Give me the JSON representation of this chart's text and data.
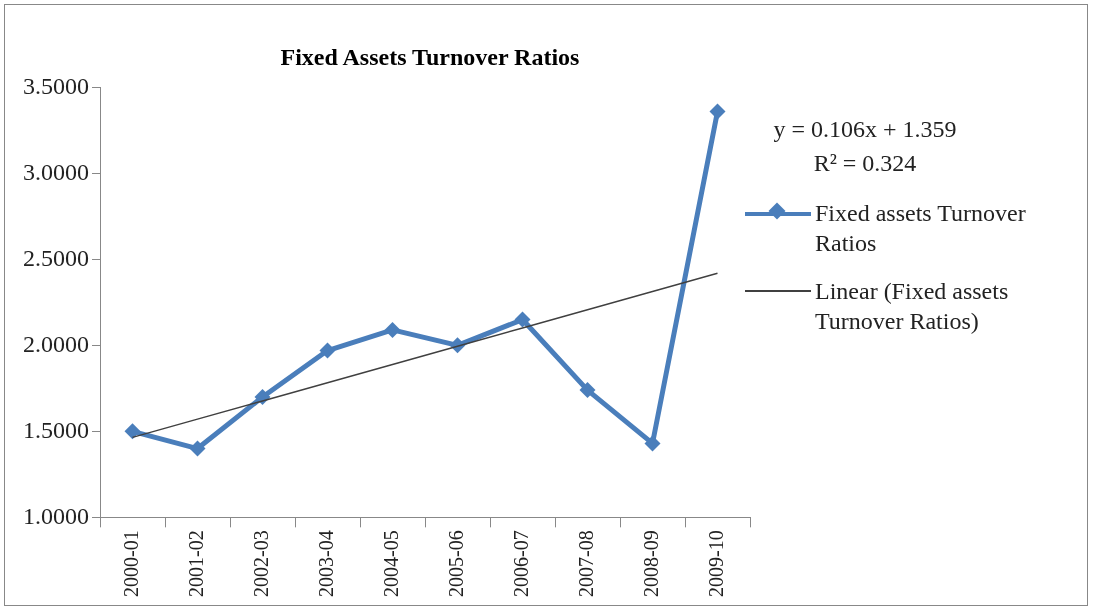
{
  "chart_data": {
    "type": "line",
    "title": "Fixed Assets Turnover Ratios",
    "categories": [
      "2000-01",
      "2001-02",
      "2002-03",
      "2003-04",
      "2004-05",
      "2005-06",
      "2006-07",
      "2007-08",
      "2008-09",
      "2009-10"
    ],
    "series": [
      {
        "name": "Fixed assets Turnover Ratios",
        "color": "#4a7ebb",
        "marker": "diamond",
        "values": [
          1.5,
          1.4,
          1.7,
          1.97,
          2.09,
          2.0,
          2.15,
          1.74,
          1.43,
          3.36
        ]
      },
      {
        "name": "Linear (Fixed assets Turnover Ratios)",
        "color": "#404040",
        "marker": "none",
        "values": [
          1.465,
          1.571,
          1.677,
          1.783,
          1.889,
          1.995,
          2.101,
          2.207,
          2.313,
          2.419
        ]
      }
    ],
    "ylim": [
      1,
      3.5
    ],
    "yticks": [
      {
        "value": 1,
        "label": "1.0000"
      },
      {
        "value": 1.5,
        "label": "1.5000"
      },
      {
        "value": 2,
        "label": "2.0000"
      },
      {
        "value": 2.5,
        "label": "2.5000"
      },
      {
        "value": 3,
        "label": "3.0000"
      },
      {
        "value": 3.5,
        "label": "3.5000"
      }
    ],
    "grid": false,
    "legend": "right",
    "annotations": [
      "y = 0.106x + 1.359",
      "R² = 0.324"
    ]
  }
}
